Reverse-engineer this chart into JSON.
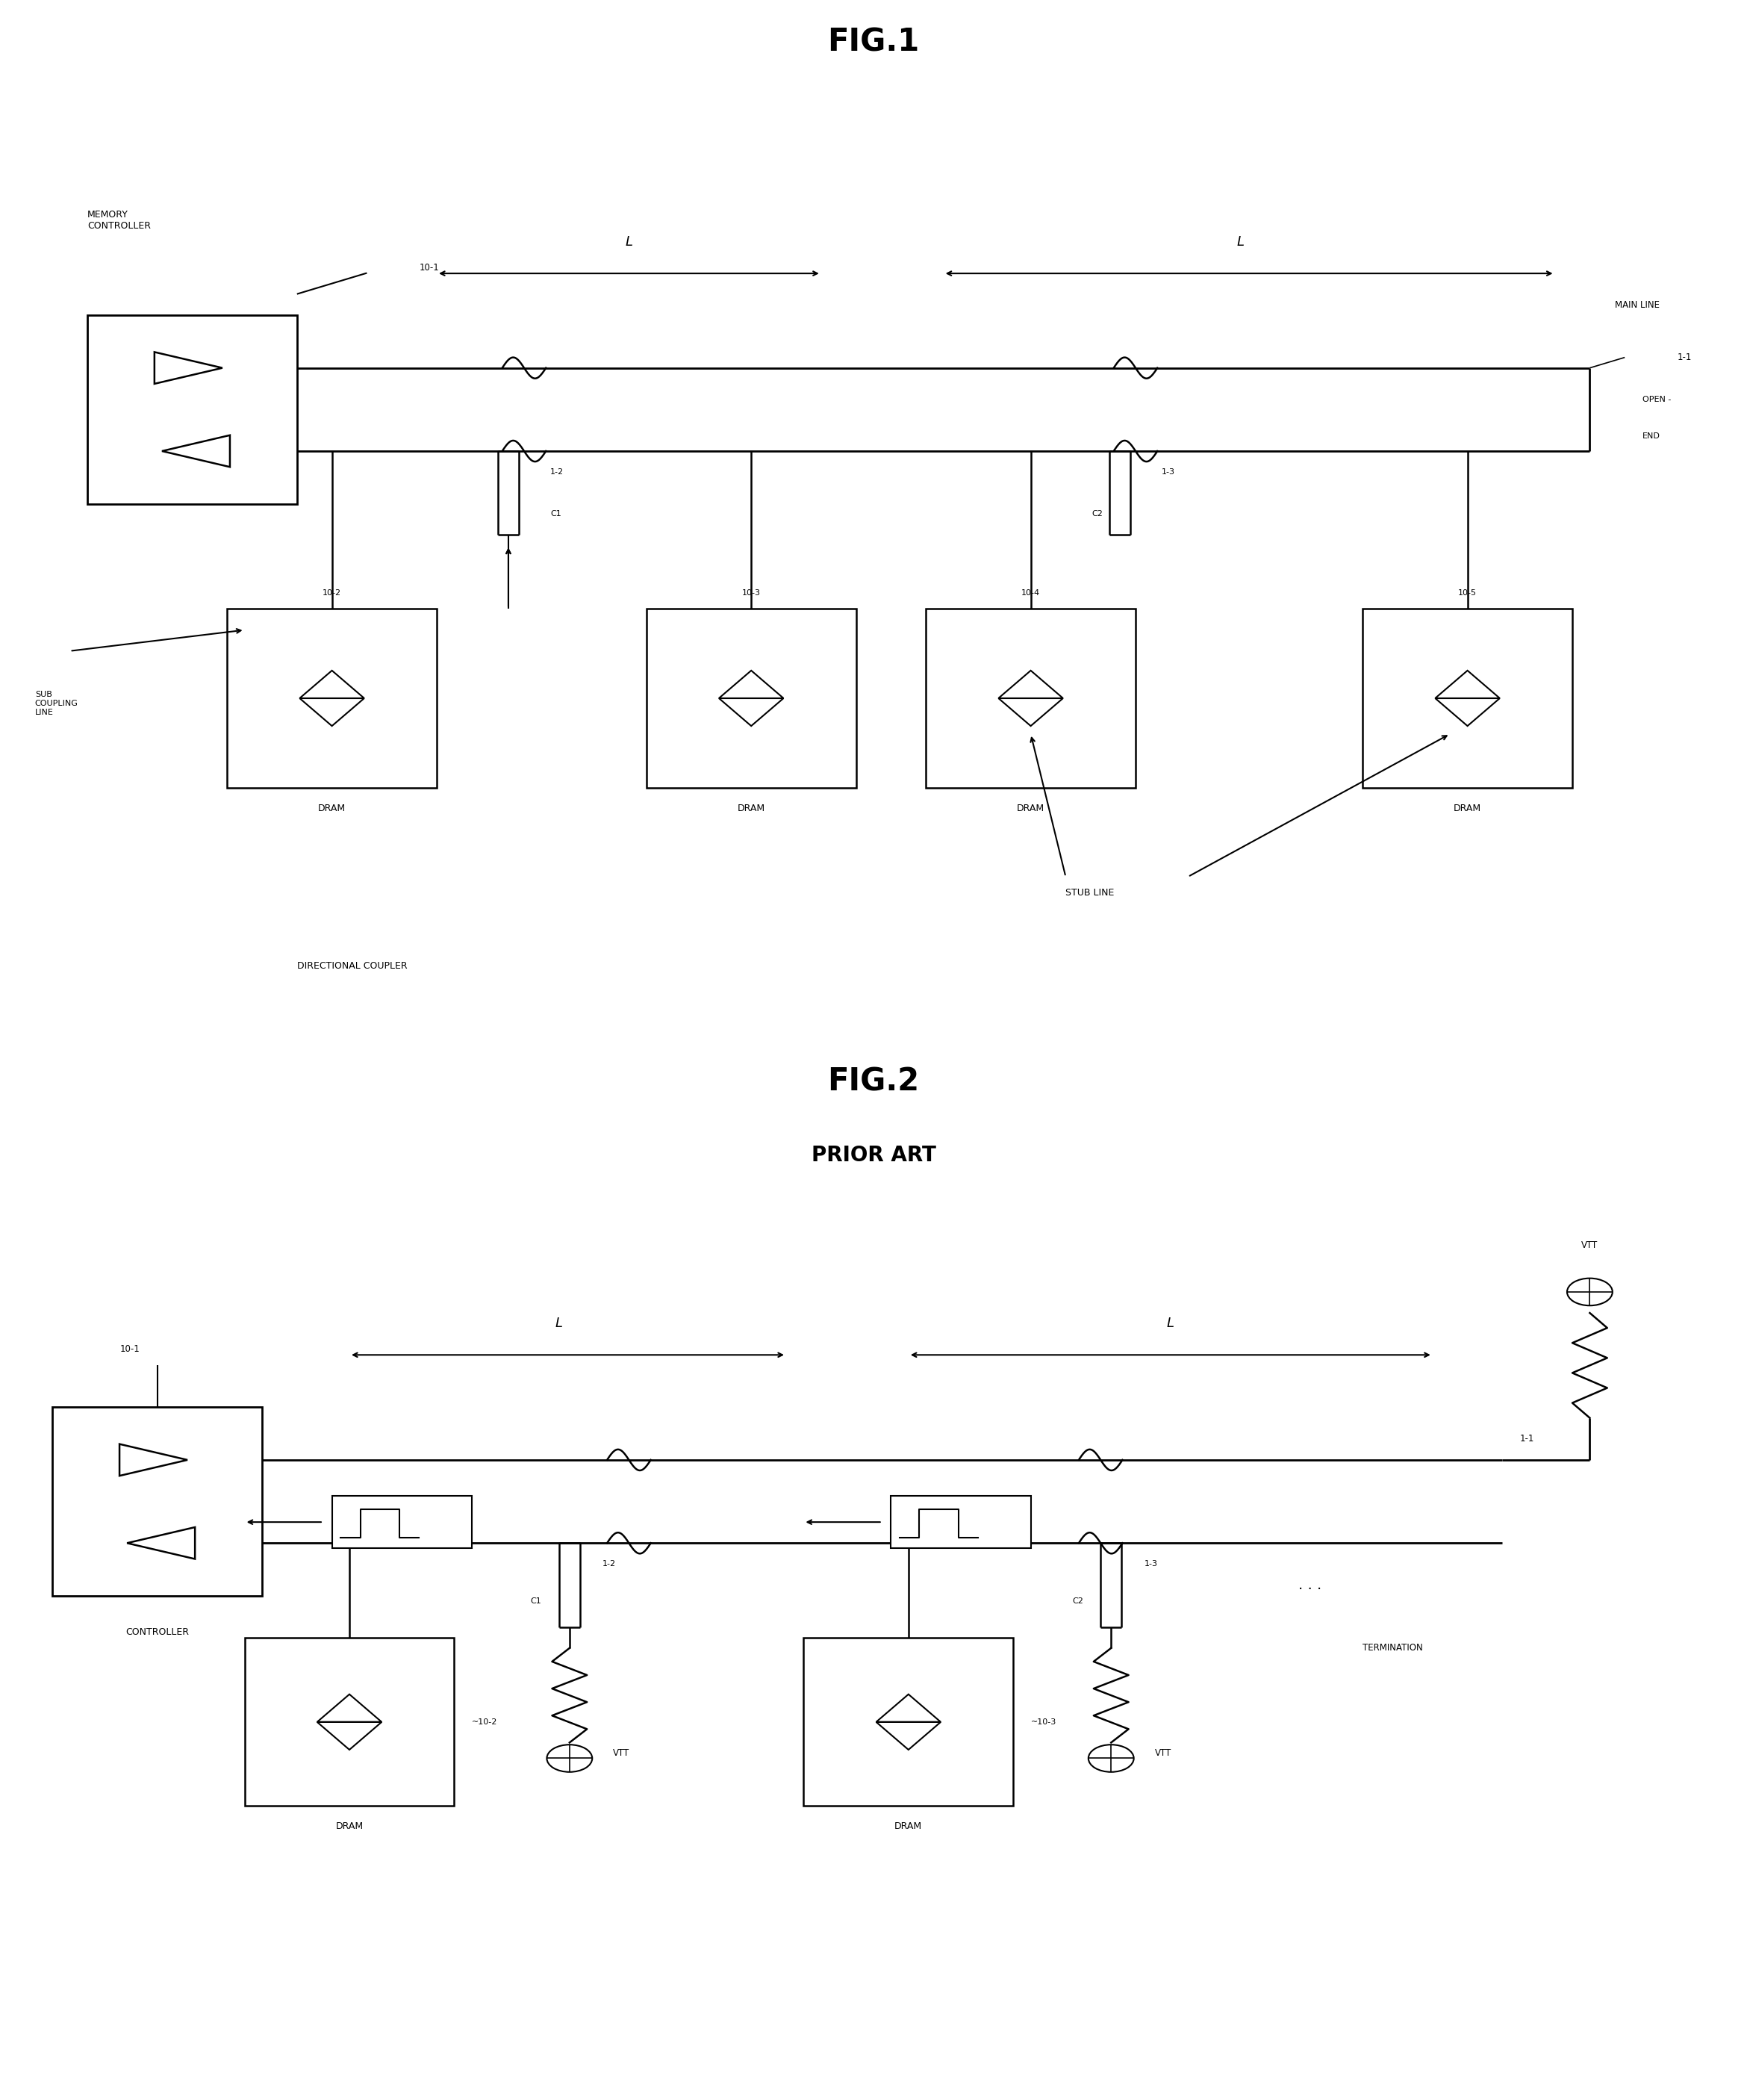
{
  "bg_color": "#ffffff",
  "fig1_title": "FIG.1",
  "fig2_title": "FIG.2",
  "fig2_subtitle": "PRIOR ART"
}
